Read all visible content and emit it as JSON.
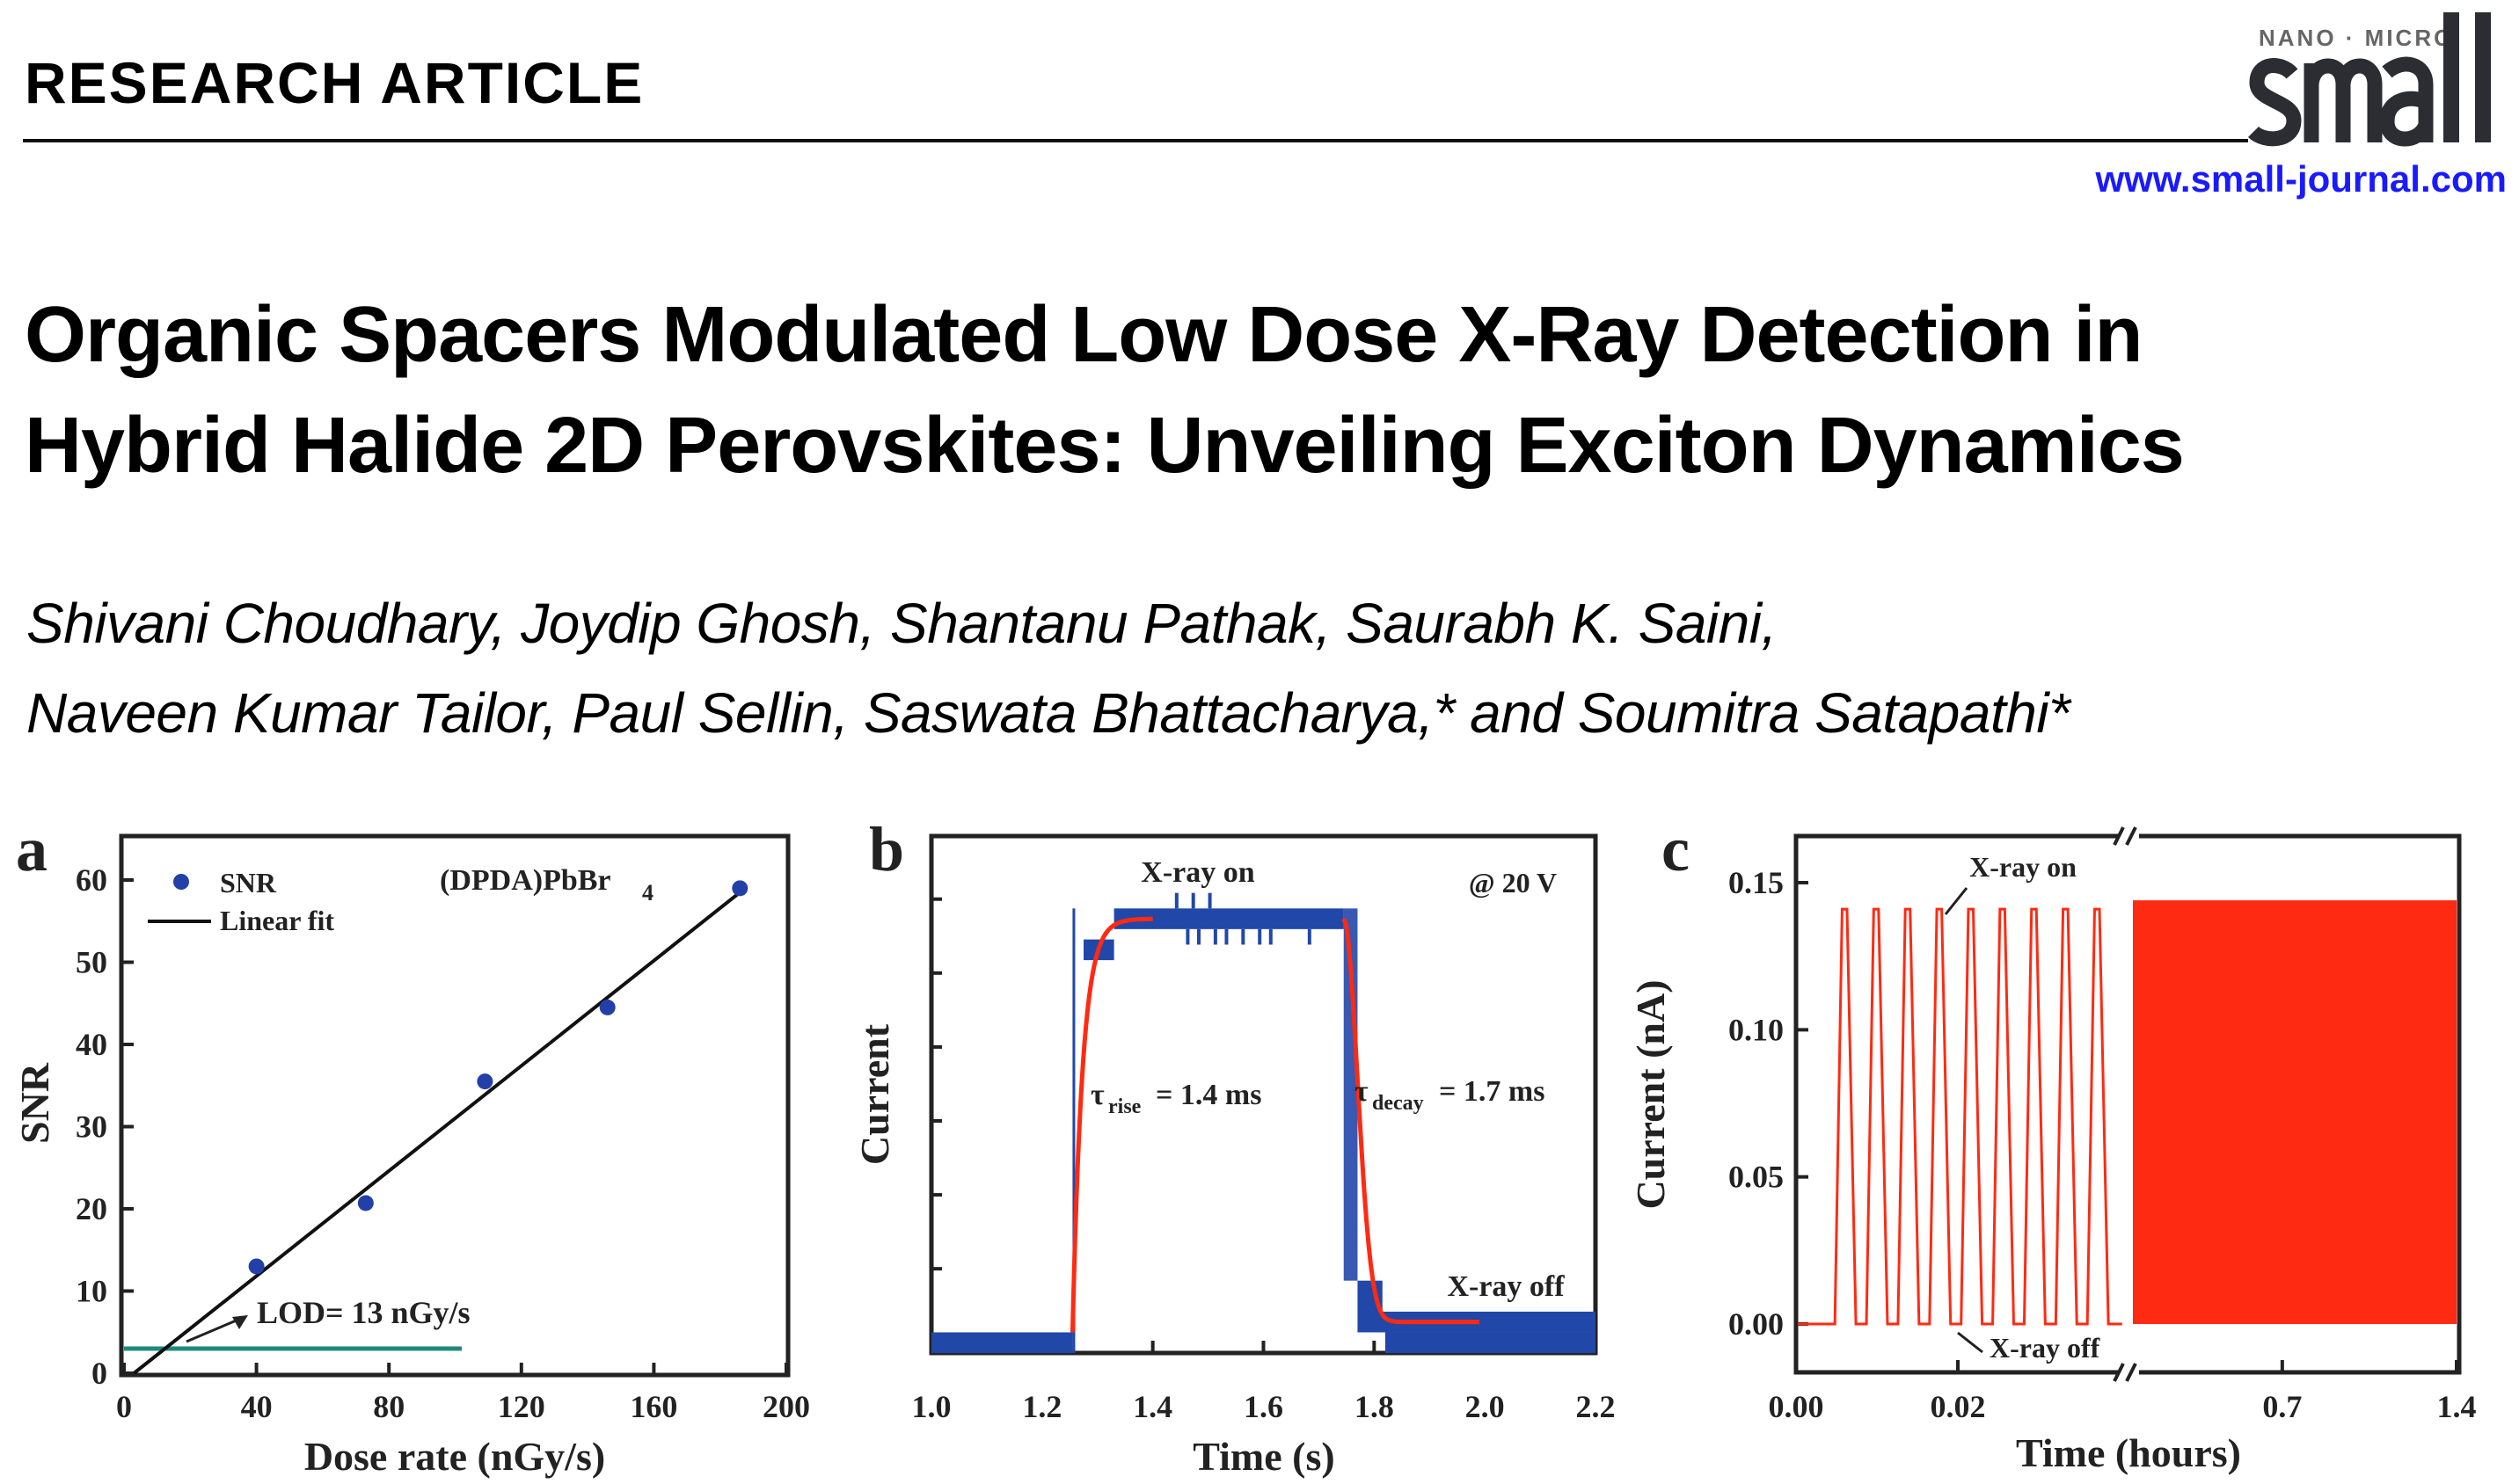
{
  "header": {
    "kicker": "RESEARCH ARTICLE",
    "journal_logo": {
      "top_line": "NANO · MICRO",
      "word": "small"
    },
    "journal_url": "www.small-journal.com"
  },
  "article": {
    "title_lines": [
      "Organic Spacers Modulated Low Dose X-Ray Detection in",
      "Hybrid Halide 2D Perovskites: Unveiling Exciton Dynamics"
    ],
    "author_lines": [
      "Shivani Choudhary, Joydip Ghosh, Shantanu Pathak, Saurabh K. Saini,",
      "Naveen Kumar Tailor, Paul Sellin, Saswata Bhattacharya,* and Soumitra Satapathi*"
    ]
  },
  "colors": {
    "scatter": "#2340a8",
    "fit": "#111111",
    "lod_line": "#1f8a7a",
    "signal_b": "#2147a8",
    "fit_red": "#ff2a12",
    "signal_c": "#ff2a12",
    "link": "#1a1aff"
  },
  "chart_data": [
    {
      "panel": "a",
      "type": "scatter",
      "xlabel": "Dose rate (nGy/s)",
      "ylabel": "SNR",
      "xlim": [
        0,
        200
      ],
      "ylim": [
        0,
        65
      ],
      "xticks": [
        "0",
        "40",
        "80",
        "120",
        "160",
        "200"
      ],
      "yticks": [
        "0",
        "10",
        "20",
        "30",
        "40",
        "50",
        "60"
      ],
      "series": [
        {
          "name": "SNR",
          "type": "scatter",
          "x": [
            40,
            73,
            109,
            146,
            186
          ],
          "y": [
            13,
            20.7,
            35.5,
            44.5,
            59
          ]
        },
        {
          "name": "Linear fit",
          "type": "line",
          "x": [
            3,
            186
          ],
          "y": [
            0,
            58.5
          ]
        }
      ],
      "lod_line": {
        "y": 3,
        "x": [
          0,
          102
        ]
      },
      "annotations": {
        "sample": "(DPDA)PbBr",
        "sample_sub": "4",
        "lod": "LOD= 13 nGy/s"
      },
      "legend": "top-left"
    },
    {
      "panel": "b",
      "type": "line",
      "xlabel": "Time (s)",
      "ylabel": "Current",
      "xlim": [
        1.0,
        2.2
      ],
      "ylim": [
        0,
        1
      ],
      "xticks": [
        "1.0",
        "1.2",
        "1.4",
        "1.6",
        "1.8",
        "2.0",
        "2.2"
      ],
      "signal": {
        "off_level": [
          0,
          0.04
        ],
        "on_level": [
          0.82,
          0.86
        ],
        "on_time": 1.255,
        "off_time": 1.745
      },
      "rise_fit": {
        "x_range": [
          1.255,
          1.4
        ]
      },
      "decay_fit": {
        "x_range": [
          1.745,
          1.99
        ]
      },
      "annotations": {
        "on": "X-ray on",
        "off": "X-ray off",
        "bias": "@ 20 V",
        "rise_tau": "τ",
        "rise_sub": "rise",
        "rise_val": "= 1.4 ms",
        "decay_tau": "τ",
        "decay_sub": "decay",
        "decay_val": "= 1.7 ms"
      }
    },
    {
      "panel": "c",
      "type": "line",
      "xlabel": "Time (hours)",
      "ylabel": "Current (nA)",
      "ylim": [
        -0.016,
        0.166
      ],
      "xticks": [
        "0.00",
        "0.02",
        "0.7",
        "1.4"
      ],
      "yticks": [
        "0.00",
        "0.05",
        "0.10",
        "0.15"
      ],
      "axis_break": true,
      "pulses": {
        "count": 9,
        "start": 0.0048,
        "period": 0.0039,
        "peak": 0.141
      },
      "dense_region": {
        "x_range": [
          0.1,
          1.4
        ],
        "peak": 0.144
      },
      "annotations": {
        "on": "X-ray on",
        "off": "X-ray off"
      }
    }
  ]
}
